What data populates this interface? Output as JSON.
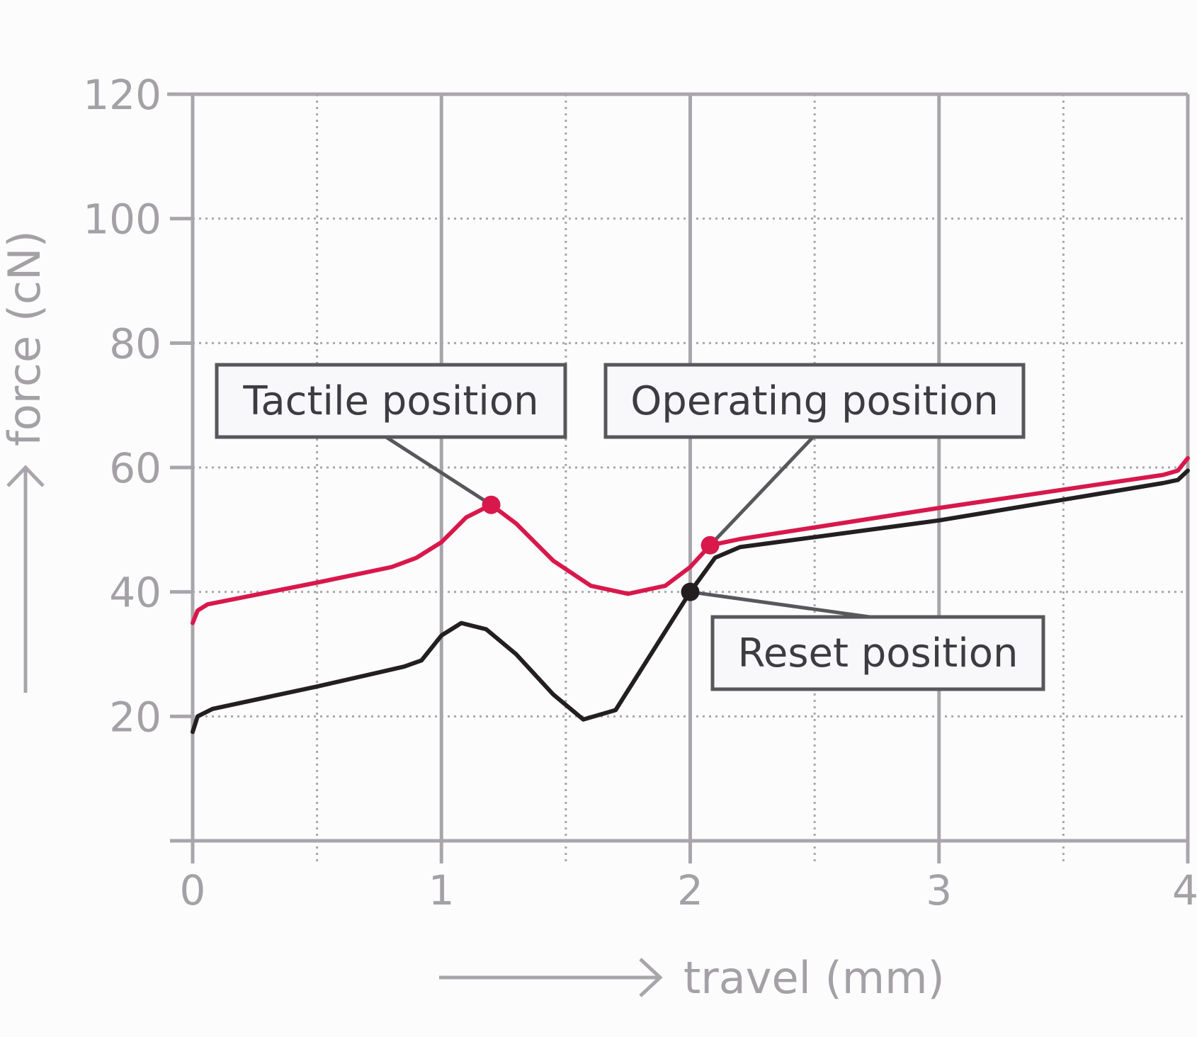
{
  "chart_data": {
    "type": "line",
    "xlabel": "travel (mm)",
    "ylabel": "force (cN)",
    "xlim": [
      0,
      4
    ],
    "ylim": [
      0,
      120
    ],
    "x_ticks": [
      0,
      1,
      2,
      3,
      4
    ],
    "y_ticks": [
      20,
      40,
      60,
      80,
      100,
      120
    ],
    "x_tick_labels": [
      "0",
      "1",
      "2",
      "3",
      "4"
    ],
    "y_tick_labels": [
      "20",
      "40",
      "60",
      "80",
      "100",
      "120"
    ],
    "grid": true,
    "colors": {
      "red": "#d8184b",
      "black": "#231f20",
      "grid_major": "#a8a6ab",
      "grid_minor": "#a8a6ab",
      "callout_border": "#58575b"
    },
    "series": [
      {
        "color": "red",
        "x": [
          0,
          0.02,
          0.06,
          0.5,
          0.8,
          0.9,
          1.0,
          1.1,
          1.2,
          1.3,
          1.45,
          1.6,
          1.75,
          1.9,
          2.0,
          2.08,
          2.2,
          3.0,
          3.9,
          3.96,
          4.0
        ],
        "y": [
          35,
          37,
          38,
          41.5,
          44,
          45.5,
          48,
          52,
          54,
          51,
          45,
          41,
          39.7,
          41,
          44,
          47.5,
          48.5,
          53.5,
          58.8,
          59.5,
          61.5
        ]
      },
      {
        "color": "black",
        "x": [
          0,
          0.02,
          0.08,
          0.5,
          0.85,
          0.92,
          1.0,
          1.08,
          1.18,
          1.3,
          1.45,
          1.57,
          1.7,
          1.85,
          2.0,
          2.1,
          2.2,
          3.0,
          3.9,
          3.96,
          4.0
        ],
        "y": [
          17.5,
          20,
          21.2,
          24.8,
          28,
          29,
          33,
          35,
          34,
          30,
          23.5,
          19.5,
          21,
          30.5,
          40,
          45.5,
          47.2,
          51.5,
          57.5,
          58,
          59.5
        ]
      }
    ],
    "points": [
      {
        "label": "Tactile position",
        "x": 1.2,
        "y": 54,
        "color": "red"
      },
      {
        "label": "Operating position",
        "x": 2.08,
        "y": 47.5,
        "color": "red"
      },
      {
        "label": "Reset position",
        "x": 2.0,
        "y": 40,
        "color": "black"
      }
    ]
  }
}
